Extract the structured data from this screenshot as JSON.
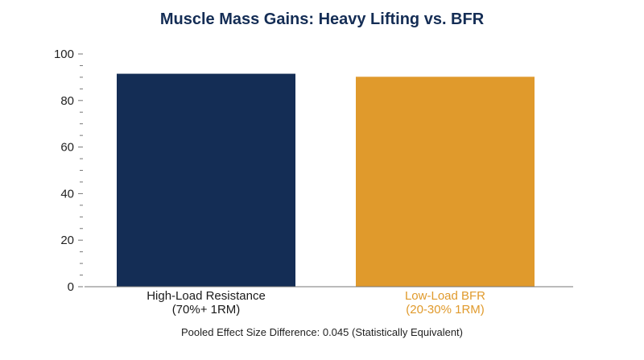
{
  "chart_data": {
    "type": "bar",
    "title": "Muscle Mass Gains: Heavy Lifting vs. BFR",
    "caption": "Pooled Effect Size Difference: 0.045 (Statistically Equivalent)",
    "categories": [
      [
        "High-Load Resistance",
        "(70%+ 1RM)"
      ],
      [
        "Low-Load BFR",
        "(20-30% 1RM)"
      ]
    ],
    "values": [
      91.5,
      90.2
    ],
    "colors": [
      "#142d55",
      "#e09a2c"
    ],
    "label_colors": [
      "#1a1a1a",
      "#e09a2c"
    ],
    "title_color": "#142d55",
    "ylim": [
      0,
      100
    ],
    "y_ticks": [
      0,
      20,
      40,
      60,
      80,
      100
    ],
    "y_minor_step": 5,
    "grid": false,
    "xlabel": "",
    "ylabel": ""
  }
}
